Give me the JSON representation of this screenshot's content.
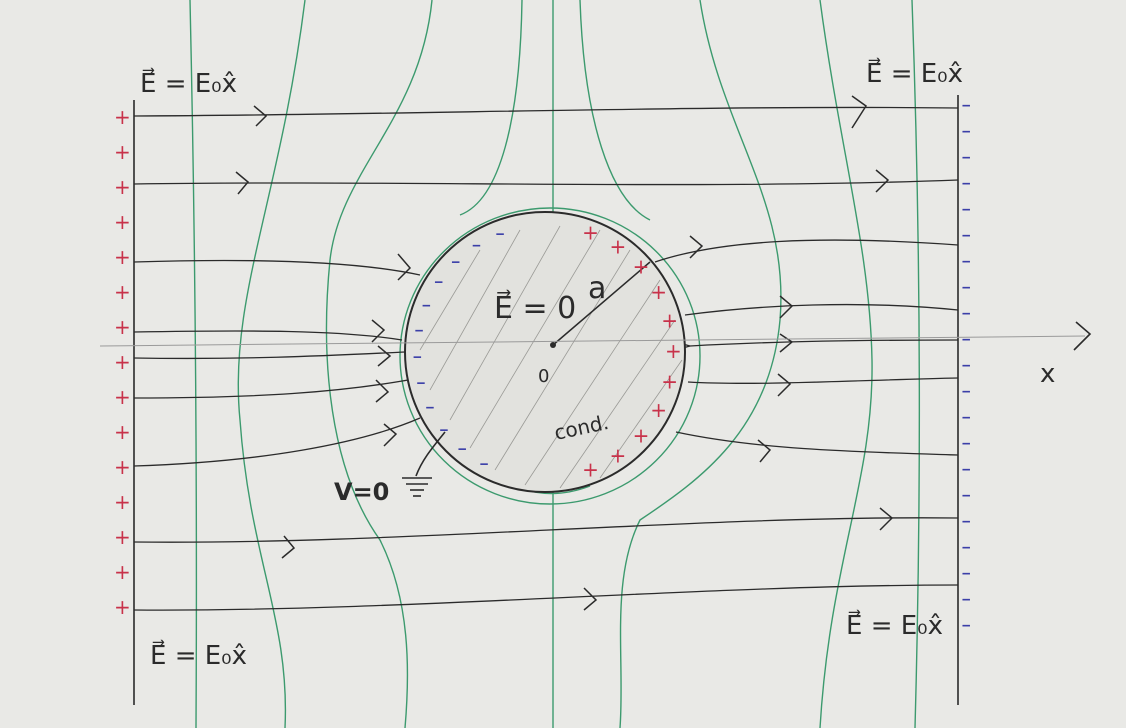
{
  "labels": {
    "field_top_left": "E⃗ = E₀x̂",
    "field_top_right": "E⃗ = E₀x̂",
    "field_bottom_left": "E⃗ = E₀x̂",
    "field_bottom_right": "E⃗ = E₀x̂",
    "inside_field": "E⃗ = 0",
    "radius": "a",
    "origin": "0",
    "conductor": "cond.",
    "ground": "V=0",
    "axis_x": "x"
  },
  "charges": {
    "left_plate": "+",
    "right_plate": "−",
    "sphere_left": "−",
    "sphere_right": "+"
  },
  "colors": {
    "paper": "#e9e9e6",
    "ink": "#2b2b2b",
    "positive": "#c8324a",
    "negative": "#3b3fa8",
    "equipotential": "#3c9a6e"
  }
}
